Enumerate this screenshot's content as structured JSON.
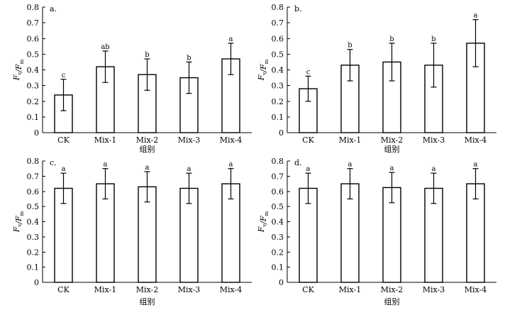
{
  "chart_data": [
    {
      "type": "bar",
      "panel_label": "a.",
      "ylabel": {
        "main": "F",
        "sub1": "v",
        "sep": "/",
        "sub2": "m"
      },
      "xlabel": "组别",
      "ylim": [
        0,
        0.8
      ],
      "yticks": [
        "0",
        "0.1",
        "0.2",
        "0.3",
        "0.4",
        "0.5",
        "0.6",
        "0.7",
        "0.8"
      ],
      "categories": [
        "CK",
        "Mix-1",
        "Mix-2",
        "Mix-3",
        "Mix-4"
      ],
      "values": [
        0.24,
        0.42,
        0.37,
        0.35,
        0.47
      ],
      "errors": [
        0.1,
        0.1,
        0.1,
        0.1,
        0.1
      ],
      "significance": [
        "c",
        "ab",
        "b",
        "b",
        "a"
      ]
    },
    {
      "type": "bar",
      "panel_label": "b.",
      "ylabel": {
        "main": "F",
        "sub1": "v",
        "sep": "/",
        "sub2": "m"
      },
      "xlabel": "组别",
      "ylim": [
        0,
        0.8
      ],
      "yticks": [
        "0",
        "0.1",
        "0.2",
        "0.3",
        "0.4",
        "0.5",
        "0.6",
        "0.7",
        "0.8"
      ],
      "categories": [
        "CK",
        "Mix-1",
        "Mix-2",
        "Mix-3",
        "Mix-4"
      ],
      "values": [
        0.28,
        0.43,
        0.45,
        0.43,
        0.57
      ],
      "errors": [
        0.08,
        0.1,
        0.12,
        0.14,
        0.15
      ],
      "significance": [
        "c",
        "b",
        "b",
        "b",
        "a"
      ]
    },
    {
      "type": "bar",
      "panel_label": "c.",
      "ylabel": {
        "main": "F",
        "sub1": "v",
        "sep": "/",
        "sub2": "m"
      },
      "xlabel": "组别",
      "ylim": [
        0,
        0.8
      ],
      "yticks": [
        "0",
        "0.1",
        "0.2",
        "0.3",
        "0.4",
        "0.5",
        "0.6",
        "0.7",
        "0.8"
      ],
      "categories": [
        "CK",
        "Mix-1",
        "Mix-2",
        "Mix-3",
        "Mix-4"
      ],
      "values": [
        0.62,
        0.65,
        0.63,
        0.62,
        0.65
      ],
      "errors": [
        0.1,
        0.1,
        0.1,
        0.1,
        0.1
      ],
      "significance": [
        "a",
        "a",
        "a",
        "a",
        "a"
      ]
    },
    {
      "type": "bar",
      "panel_label": "d.",
      "ylabel": {
        "main": "F",
        "sub1": "v",
        "sep": "/",
        "sub2": "m"
      },
      "xlabel": "组别",
      "ylim": [
        0,
        0.8
      ],
      "yticks": [
        "0",
        "0.1",
        "0.2",
        "0.3",
        "0.4",
        "0.5",
        "0.6",
        "0.7",
        "0.8"
      ],
      "categories": [
        "CK",
        "Mix-1",
        "Mix-2",
        "Mix-3",
        "Mix-4"
      ],
      "values": [
        0.62,
        0.65,
        0.625,
        0.62,
        0.65
      ],
      "errors": [
        0.1,
        0.1,
        0.1,
        0.1,
        0.1
      ],
      "significance": [
        "a",
        "a",
        "a",
        "a",
        "a"
      ]
    }
  ]
}
